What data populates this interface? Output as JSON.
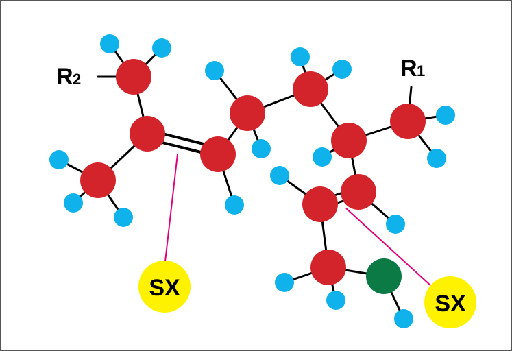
{
  "labels": {
    "r2_main": "R",
    "r2_sub": "2",
    "r1_main": "R",
    "r1_sub": "1",
    "sx_left": "SX",
    "sx_right": "SX"
  },
  "colors": {
    "carbon": "#d4242b",
    "hydrogen": "#0fb2ea",
    "heteroatom": "#0b7a45",
    "sx_marker": "#fff200",
    "connector": "#e2007a",
    "bond": "#000000"
  }
}
